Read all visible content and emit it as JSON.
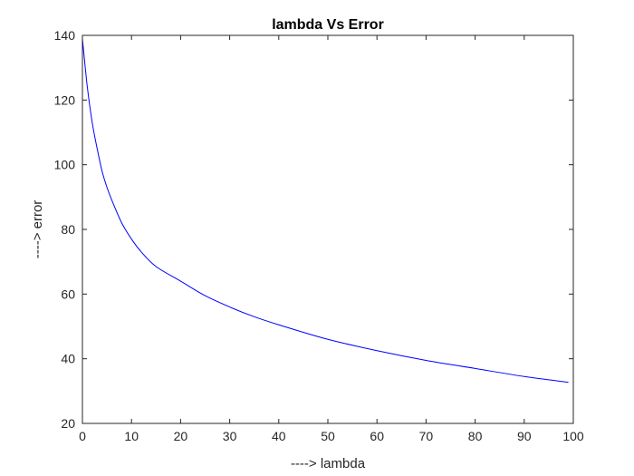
{
  "chart_data": {
    "type": "line",
    "title": "lambda Vs Error",
    "xlabel": "----> lambda",
    "ylabel": "----> error",
    "xlim": [
      0,
      100
    ],
    "ylim": [
      20,
      140
    ],
    "xticks": [
      0,
      10,
      20,
      30,
      40,
      50,
      60,
      70,
      80,
      90,
      100
    ],
    "yticks": [
      20,
      40,
      60,
      80,
      100,
      120,
      140
    ],
    "grid": false,
    "series": [
      {
        "color": "#0000ff",
        "x": [
          0,
          1,
          2,
          3,
          4,
          5,
          6,
          8,
          10,
          12,
          15,
          20,
          25,
          30,
          35,
          40,
          50,
          60,
          70,
          80,
          90,
          99
        ],
        "y": [
          139,
          124,
          113,
          105,
          98,
          93,
          89,
          82,
          77,
          73,
          68.5,
          64,
          59.5,
          56,
          53,
          50.5,
          46,
          42.5,
          39.5,
          37,
          34.5,
          32.7
        ]
      }
    ]
  }
}
